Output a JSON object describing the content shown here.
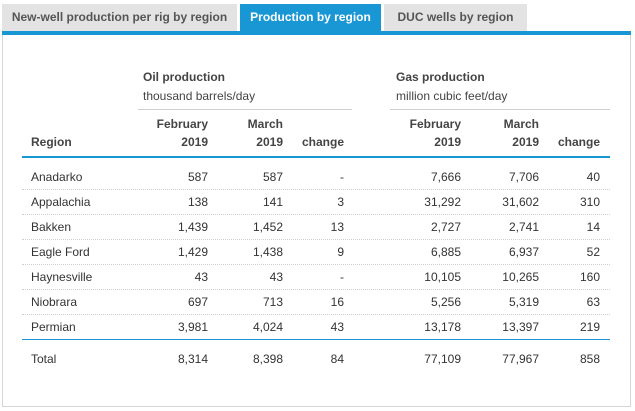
{
  "tabs": [
    {
      "label": "New-well production per rig by region"
    },
    {
      "label": "Production by region"
    },
    {
      "label": "DUC wells by region"
    }
  ],
  "table": {
    "oil_group": {
      "title": "Oil production",
      "unit": "thousand barrels/day"
    },
    "gas_group": {
      "title": "Gas production",
      "unit": "million cubic feet/day"
    },
    "col_region": "Region",
    "col_feb_1": "February",
    "col_feb_2": "2019",
    "col_mar_1": "March",
    "col_mar_2": "2019",
    "col_change": "change",
    "rows": [
      {
        "region": "Anadarko",
        "oil_feb": "587",
        "oil_mar": "587",
        "oil_chg": "-",
        "gas_feb": "7,666",
        "gas_mar": "7,706",
        "gas_chg": "40"
      },
      {
        "region": "Appalachia",
        "oil_feb": "138",
        "oil_mar": "141",
        "oil_chg": "3",
        "gas_feb": "31,292",
        "gas_mar": "31,602",
        "gas_chg": "310"
      },
      {
        "region": "Bakken",
        "oil_feb": "1,439",
        "oil_mar": "1,452",
        "oil_chg": "13",
        "gas_feb": "2,727",
        "gas_mar": "2,741",
        "gas_chg": "14"
      },
      {
        "region": "Eagle Ford",
        "oil_feb": "1,429",
        "oil_mar": "1,438",
        "oil_chg": "9",
        "gas_feb": "6,885",
        "gas_mar": "6,937",
        "gas_chg": "52"
      },
      {
        "region": "Haynesville",
        "oil_feb": "43",
        "oil_mar": "43",
        "oil_chg": "-",
        "gas_feb": "10,105",
        "gas_mar": "10,265",
        "gas_chg": "160"
      },
      {
        "region": "Niobrara",
        "oil_feb": "697",
        "oil_mar": "713",
        "oil_chg": "16",
        "gas_feb": "5,256",
        "gas_mar": "5,319",
        "gas_chg": "63"
      },
      {
        "region": "Permian",
        "oil_feb": "3,981",
        "oil_mar": "4,024",
        "oil_chg": "43",
        "gas_feb": "13,178",
        "gas_mar": "13,397",
        "gas_chg": "219"
      }
    ],
    "total": {
      "region": "Total",
      "oil_feb": "8,314",
      "oil_mar": "8,398",
      "oil_chg": "84",
      "gas_feb": "77,109",
      "gas_mar": "77,967",
      "gas_chg": "858"
    }
  },
  "colors": {
    "accent": "#1997d5",
    "tab_inactive": "#e3e3e3"
  }
}
